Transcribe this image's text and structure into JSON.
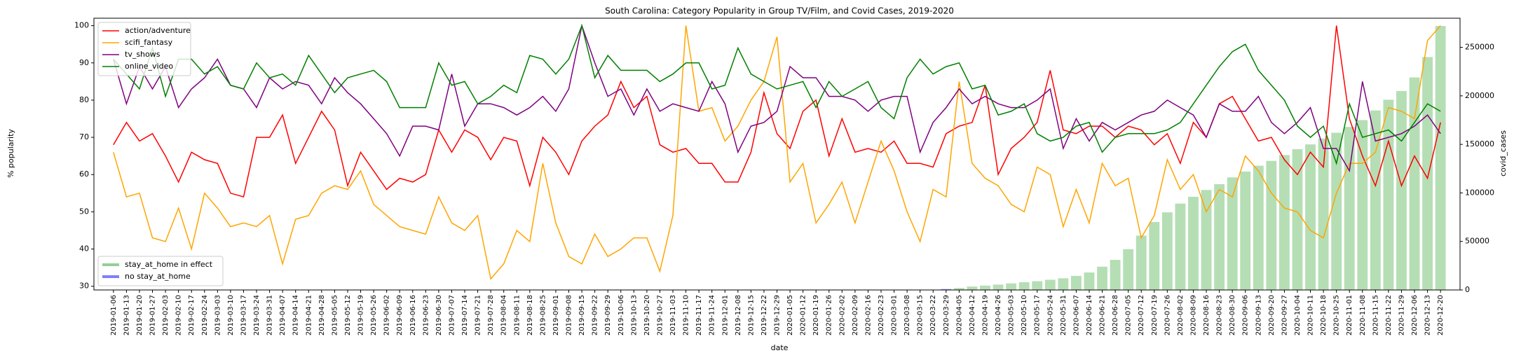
{
  "chart_data": {
    "type": "line",
    "title": "South Carolina: Category Popularity in Group TV/Film, and Covid Cases, 2019-2020",
    "x_label": "date",
    "y_label": "% popularity",
    "y2_label": "covid_cases",
    "legend": "upper left",
    "bar_legend": "lower left",
    "ylim": [
      29,
      102
    ],
    "yticks": [
      30,
      40,
      50,
      60,
      70,
      80,
      90,
      100
    ],
    "y2lim": [
      0,
      280000
    ],
    "y2ticks": [
      0,
      50000,
      100000,
      150000,
      200000,
      250000
    ],
    "categories": [
      "2019-01-06",
      "2019-01-13",
      "2019-01-20",
      "2019-01-27",
      "2019-02-03",
      "2019-02-10",
      "2019-02-17",
      "2019-02-24",
      "2019-03-03",
      "2019-03-10",
      "2019-03-17",
      "2019-03-24",
      "2019-03-31",
      "2019-04-07",
      "2019-04-14",
      "2019-04-21",
      "2019-04-28",
      "2019-05-05",
      "2019-05-12",
      "2019-05-19",
      "2019-05-26",
      "2019-06-02",
      "2019-06-09",
      "2019-06-16",
      "2019-06-23",
      "2019-06-30",
      "2019-07-07",
      "2019-07-14",
      "2019-07-21",
      "2019-07-28",
      "2019-08-04",
      "2019-08-11",
      "2019-08-18",
      "2019-08-25",
      "2019-09-01",
      "2019-09-08",
      "2019-09-15",
      "2019-09-22",
      "2019-09-29",
      "2019-10-06",
      "2019-10-13",
      "2019-10-20",
      "2019-10-27",
      "2019-11-03",
      "2019-11-10",
      "2019-11-17",
      "2019-11-24",
      "2019-12-01",
      "2019-12-08",
      "2019-12-15",
      "2019-12-22",
      "2019-12-29",
      "2020-01-05",
      "2020-01-12",
      "2020-01-19",
      "2020-01-26",
      "2020-02-02",
      "2020-02-09",
      "2020-02-16",
      "2020-02-23",
      "2020-03-01",
      "2020-03-08",
      "2020-03-15",
      "2020-03-22",
      "2020-03-29",
      "2020-04-05",
      "2020-04-12",
      "2020-04-19",
      "2020-04-26",
      "2020-05-03",
      "2020-05-10",
      "2020-05-17",
      "2020-05-24",
      "2020-05-31",
      "2020-06-07",
      "2020-06-14",
      "2020-06-21",
      "2020-06-28",
      "2020-07-05",
      "2020-07-12",
      "2020-07-19",
      "2020-07-26",
      "2020-08-02",
      "2020-08-09",
      "2020-08-16",
      "2020-08-23",
      "2020-08-30",
      "2020-09-06",
      "2020-09-13",
      "2020-09-20",
      "2020-09-27",
      "2020-10-04",
      "2020-10-11",
      "2020-10-18",
      "2020-10-25",
      "2020-11-01",
      "2020-11-08",
      "2020-11-15",
      "2020-11-22",
      "2020-11-29",
      "2020-12-06",
      "2020-12-13",
      "2020-12-20"
    ],
    "series": [
      {
        "name": "action/adventure",
        "color": "red",
        "values": [
          68,
          74,
          69,
          71,
          65,
          58,
          66,
          64,
          63,
          55,
          54,
          70,
          70,
          76,
          63,
          70,
          77,
          72,
          57,
          66,
          61,
          56,
          59,
          58,
          60,
          72,
          66,
          72,
          70,
          64,
          70,
          69,
          57,
          70,
          66,
          60,
          69,
          73,
          76,
          85,
          78,
          81,
          68,
          66,
          67,
          63,
          63,
          58,
          58,
          66,
          82,
          71,
          67,
          77,
          80,
          65,
          75,
          66,
          67,
          66,
          69,
          63,
          63,
          62,
          71,
          73,
          74,
          84,
          60,
          67,
          70,
          74,
          88,
          72,
          71,
          73,
          73,
          70,
          73,
          72,
          68,
          71,
          63,
          74,
          70,
          79,
          81,
          75,
          69,
          70,
          64,
          60,
          66,
          62,
          100,
          75,
          65,
          57,
          69,
          57,
          65,
          59,
          74
        ]
      },
      {
        "name": "scifi_fantasy",
        "color": "orange",
        "values": [
          66,
          54,
          55,
          43,
          42,
          51,
          40,
          55,
          51,
          46,
          47,
          46,
          49,
          36,
          48,
          49,
          55,
          57,
          56,
          61,
          52,
          49,
          46,
          45,
          44,
          54,
          47,
          45,
          49,
          32,
          36,
          45,
          42,
          63,
          47,
          38,
          36,
          44,
          38,
          40,
          43,
          43,
          34,
          49,
          100,
          77,
          78,
          69,
          73,
          80,
          85,
          97,
          58,
          63,
          47,
          52,
          58,
          47,
          58,
          69,
          61,
          50,
          42,
          56,
          54,
          85,
          63,
          59,
          57,
          52,
          50,
          62,
          60,
          46,
          56,
          47,
          63,
          57,
          59,
          43,
          49,
          64,
          56,
          60,
          50,
          56,
          54,
          65,
          61,
          55,
          51,
          50,
          45,
          43,
          55,
          63,
          63,
          66,
          78,
          77,
          75,
          96,
          100
        ]
      },
      {
        "name": "tv_shows",
        "color": "purple",
        "values": [
          91,
          79,
          89,
          83,
          89,
          78,
          83,
          86,
          91,
          84,
          83,
          78,
          86,
          83,
          85,
          84,
          79,
          86,
          82,
          79,
          75,
          71,
          65,
          73,
          73,
          72,
          87,
          73,
          79,
          79,
          78,
          76,
          78,
          81,
          77,
          83,
          100,
          90,
          81,
          83,
          76,
          83,
          77,
          79,
          78,
          77,
          85,
          79,
          66,
          73,
          74,
          77,
          89,
          86,
          86,
          81,
          81,
          80,
          77,
          80,
          81,
          81,
          66,
          74,
          78,
          83,
          79,
          81,
          79,
          78,
          78,
          80,
          83,
          67,
          75,
          69,
          74,
          72,
          74,
          76,
          77,
          80,
          78,
          76,
          70,
          79,
          77,
          77,
          81,
          74,
          71,
          74,
          78,
          67,
          67,
          61,
          85,
          69,
          70,
          71,
          73,
          76,
          71
        ]
      },
      {
        "name": "online_video",
        "color": "green",
        "values": [
          91,
          87,
          83,
          94,
          81,
          91,
          91,
          87,
          89,
          84,
          83,
          90,
          86,
          87,
          84,
          92,
          87,
          82,
          86,
          87,
          88,
          85,
          78,
          78,
          78,
          90,
          84,
          85,
          79,
          81,
          84,
          82,
          92,
          91,
          87,
          91,
          100,
          86,
          92,
          88,
          88,
          88,
          85,
          87,
          90,
          90,
          83,
          84,
          94,
          87,
          85,
          83,
          84,
          85,
          78,
          85,
          81,
          83,
          85,
          78,
          75,
          86,
          91,
          87,
          89,
          90,
          83,
          84,
          76,
          77,
          79,
          71,
          69,
          70,
          73,
          74,
          66,
          70,
          71,
          71,
          71,
          72,
          74,
          79,
          84,
          89,
          93,
          95,
          88,
          84,
          80,
          73,
          70,
          73,
          63,
          79,
          70,
          71,
          72,
          69,
          74,
          79,
          77
        ]
      },
      {
        "name": "stay_at_home in effect",
        "type": "bar",
        "axis": "y2",
        "color": "#2ca02c",
        "values": [
          null,
          null,
          null,
          null,
          null,
          null,
          null,
          null,
          null,
          null,
          null,
          null,
          null,
          null,
          null,
          null,
          null,
          null,
          null,
          null,
          null,
          null,
          null,
          null,
          null,
          null,
          null,
          null,
          null,
          null,
          null,
          null,
          null,
          null,
          null,
          null,
          null,
          null,
          null,
          null,
          null,
          null,
          null,
          null,
          null,
          null,
          null,
          null,
          null,
          null,
          null,
          null,
          null,
          null,
          null,
          null,
          null,
          null,
          null,
          null,
          null,
          null,
          null,
          null,
          null,
          2000,
          3500,
          4500,
          5500,
          6800,
          8000,
          9000,
          10500,
          12000,
          14500,
          18000,
          24000,
          31000,
          42000,
          56000,
          70000,
          80000,
          89000,
          96000,
          103000,
          109000,
          116000,
          122000,
          128000,
          133000,
          139000,
          145000,
          150000,
          156000,
          162000,
          168000,
          175000,
          185000,
          196000,
          205000,
          219000,
          240000,
          272000
        ]
      },
      {
        "name": "no stay_at_home",
        "type": "bar",
        "axis": "y2",
        "color": "#0000ff",
        "values": [
          null,
          null,
          null,
          null,
          null,
          null,
          null,
          null,
          null,
          null,
          null,
          null,
          null,
          null,
          null,
          null,
          null,
          null,
          null,
          null,
          null,
          null,
          null,
          null,
          null,
          null,
          null,
          null,
          null,
          null,
          null,
          null,
          null,
          null,
          null,
          null,
          null,
          null,
          null,
          null,
          null,
          null,
          null,
          null,
          null,
          null,
          null,
          null,
          null,
          null,
          null,
          null,
          null,
          null,
          null,
          null,
          null,
          null,
          null,
          null,
          null,
          null,
          null,
          300,
          1000,
          null,
          null,
          null,
          null,
          null,
          null,
          null,
          null,
          null,
          null,
          null,
          null,
          null,
          null,
          null,
          null,
          null,
          null,
          null,
          null,
          null,
          null,
          null,
          null,
          null,
          null,
          null,
          null,
          null,
          null,
          null,
          null,
          null,
          null,
          null,
          null,
          null,
          null
        ]
      }
    ]
  }
}
